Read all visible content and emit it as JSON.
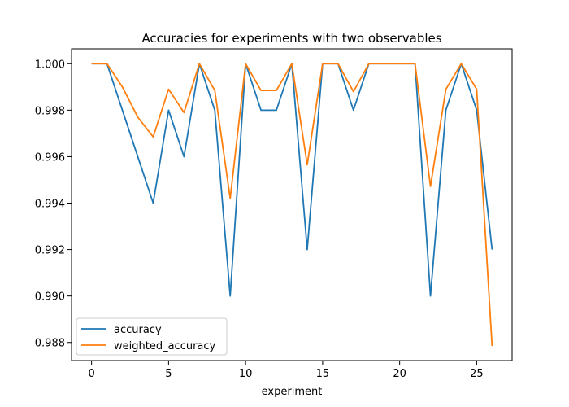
{
  "chart_data": {
    "type": "line",
    "title": "Accuracies for experiments with two observables",
    "xlabel": "experiment",
    "ylabel": "",
    "xlim": [
      -1.3,
      27.3
    ],
    "ylim": [
      0.98722,
      1.00064
    ],
    "xticks": [
      0,
      5,
      10,
      15,
      20,
      25
    ],
    "yticks": [
      0.988,
      0.99,
      0.992,
      0.994,
      0.996,
      0.998,
      1.0
    ],
    "ytick_labels": [
      "0.988",
      "0.990",
      "0.992",
      "0.994",
      "0.996",
      "0.998",
      "1.000"
    ],
    "grid": false,
    "legend_position": "lower-left",
    "x": [
      0,
      1,
      2,
      3,
      4,
      5,
      6,
      7,
      8,
      9,
      10,
      11,
      12,
      13,
      14,
      15,
      16,
      17,
      18,
      19,
      20,
      21,
      22,
      23,
      24,
      25,
      26
    ],
    "series": [
      {
        "name": "accuracy",
        "color": "#1f77b4",
        "values": [
          1.0,
          1.0,
          0.998,
          0.996,
          0.994,
          0.998,
          0.996,
          1.0,
          0.998,
          0.99,
          1.0,
          0.998,
          0.998,
          1.0,
          0.992,
          1.0,
          1.0,
          0.998,
          1.0,
          1.0,
          1.0,
          1.0,
          0.99,
          0.998,
          1.0,
          0.998,
          0.992
        ]
      },
      {
        "name": "weighted_accuracy",
        "color": "#ff7f0e",
        "values": [
          1.0,
          1.0,
          0.999,
          0.9977,
          0.99685,
          0.9989,
          0.9979,
          1.0,
          0.99885,
          0.9942,
          1.0,
          0.99885,
          0.99885,
          1.0,
          0.99565,
          1.0,
          1.0,
          0.9988,
          1.0,
          1.0,
          1.0,
          1.0,
          0.99472,
          0.9989,
          1.0,
          0.9989,
          0.98785
        ]
      }
    ]
  }
}
